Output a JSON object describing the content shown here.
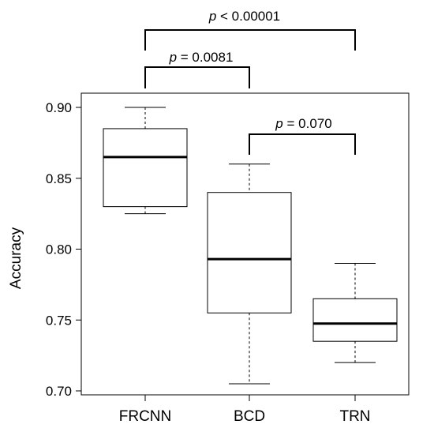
{
  "chart_data": {
    "type": "boxplot",
    "title": "",
    "xlabel": "",
    "ylabel": "Accuracy",
    "ylim": [
      0.7,
      0.9
    ],
    "yticks": [
      "0.70",
      "0.75",
      "0.80",
      "0.85",
      "0.90"
    ],
    "categories": [
      "FRCNN",
      "BCD",
      "TRN"
    ],
    "boxes": [
      {
        "min": 0.825,
        "q1": 0.83,
        "median": 0.865,
        "q3": 0.885,
        "max": 0.9
      },
      {
        "min": 0.705,
        "q1": 0.755,
        "median": 0.793,
        "q3": 0.84,
        "max": 0.86
      },
      {
        "min": 0.72,
        "q1": 0.735,
        "median": 0.7475,
        "q3": 0.765,
        "max": 0.79
      }
    ],
    "comparisons": [
      {
        "from": 0,
        "to": 2,
        "p_symbol": "p",
        "p_text": " < 0.00001"
      },
      {
        "from": 0,
        "to": 1,
        "p_symbol": "p",
        "p_text": " = 0.0081"
      },
      {
        "from": 1,
        "to": 2,
        "p_symbol": "p",
        "p_text": " = 0.070"
      }
    ],
    "colors": {
      "box_fill": "#ffffff",
      "line": "#000000"
    }
  }
}
